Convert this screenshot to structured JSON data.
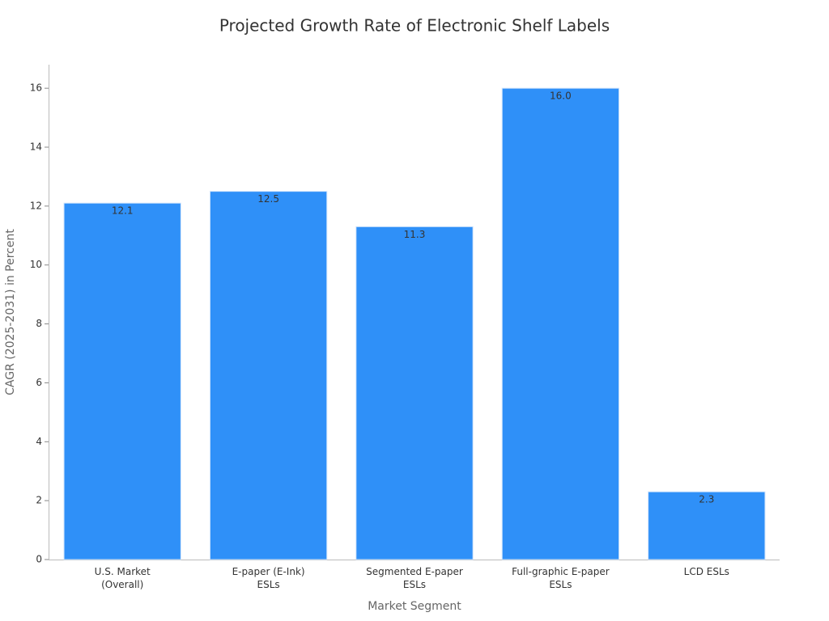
{
  "chart_data": {
    "type": "bar",
    "title": "Projected Growth Rate of Electronic Shelf Labels",
    "x_label": "Market Segment",
    "y_label": "CAGR (2025-2031) in Percent",
    "categories": [
      "U.S. Market\n(Overall)",
      "E-paper (E-Ink)\nESLs",
      "Segmented E-paper\nESLs",
      "Full-graphic E-paper\nESLs",
      "LCD ESLs"
    ],
    "values": [
      12.1,
      12.5,
      11.3,
      16.0,
      2.3
    ],
    "value_labels": [
      "12.1",
      "12.5",
      "11.3",
      "16.0",
      "2.3"
    ],
    "color": "#2f90f8",
    "ylim": [
      0,
      16.8
    ],
    "yticks": [
      0,
      2,
      4,
      6,
      8,
      10,
      12,
      14,
      16
    ],
    "grid": false
  }
}
